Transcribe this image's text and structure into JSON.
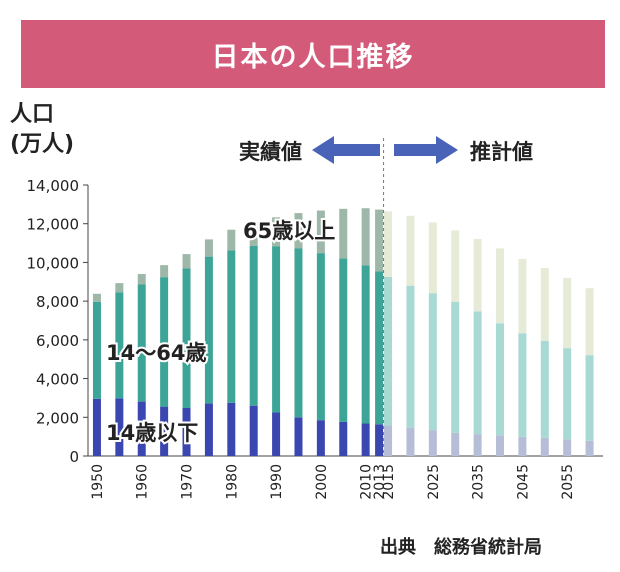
{
  "title": "日本の人口推移",
  "source": "出典　総務省統計局",
  "chart_data": {
    "type": "bar",
    "stacked": true,
    "ylabel_line1": "人口",
    "ylabel_line2": "(万人)",
    "ylim": [
      0,
      14000
    ],
    "yticks": [
      "0",
      "2,000",
      "4,000",
      "6,000",
      "8,000",
      "10,000",
      "12,000",
      "14,000"
    ],
    "x_tick_labels": [
      "1950",
      "1960",
      "1970",
      "1980",
      "1990",
      "2000",
      "2010",
      "2013",
      "2015",
      "2025",
      "2035",
      "2045",
      "2055"
    ],
    "x": [
      1950,
      1955,
      1960,
      1965,
      1970,
      1975,
      1980,
      1985,
      1990,
      1995,
      2000,
      2005,
      2010,
      2013,
      2015,
      2020,
      2025,
      2030,
      2035,
      2040,
      2045,
      2050,
      2055,
      2060
    ],
    "series": [
      {
        "name": "14歳以下",
        "values": [
          2950,
          2980,
          2810,
          2550,
          2480,
          2720,
          2750,
          2600,
          2250,
          2000,
          1850,
          1760,
          1680,
          1640,
          1580,
          1460,
          1320,
          1200,
          1130,
          1070,
          990,
          940,
          860,
          790
        ]
      },
      {
        "name": "14〜64歳",
        "values": [
          5020,
          5470,
          6050,
          6690,
          7210,
          7580,
          7880,
          8250,
          8590,
          8720,
          8630,
          8440,
          8170,
          7900,
          7680,
          7340,
          7090,
          6770,
          6340,
          5790,
          5350,
          5000,
          4710,
          4420
        ]
      },
      {
        "name": "65歳以上",
        "values": [
          410,
          480,
          540,
          620,
          740,
          890,
          1060,
          1250,
          1490,
          1830,
          2200,
          2570,
          2950,
          3190,
          3380,
          3610,
          3660,
          3690,
          3740,
          3870,
          3840,
          3770,
          3630,
          3460
        ]
      }
    ],
    "projection_start": 2015,
    "labels": {
      "actual": "実績値",
      "projected": "推計値",
      "over65": "65歳以上",
      "working": "14〜64歳",
      "under14": "14歳以下"
    },
    "colors": {
      "under14": "#3a47b0",
      "working": "#3da597",
      "over65": "#9db8a8",
      "under14_proj": "#b6bdd6",
      "working_proj": "#a8d9d3",
      "over65_proj": "#e6ebd8",
      "arrow": "#4863b7"
    }
  }
}
